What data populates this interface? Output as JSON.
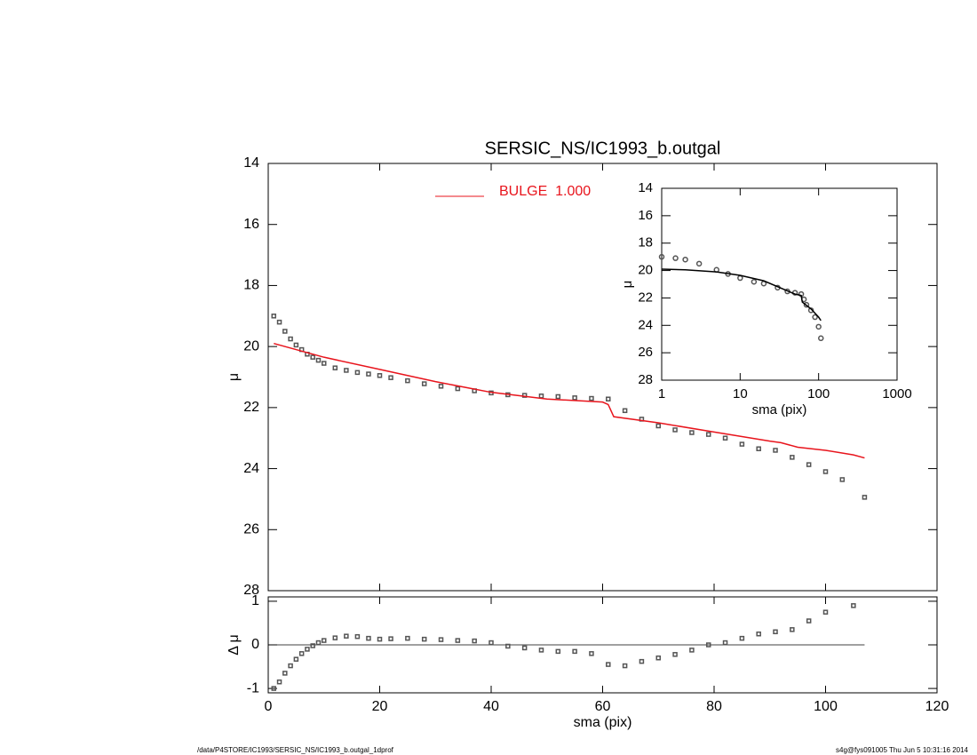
{
  "chart_data": [
    {
      "type": "scatter",
      "title": "SERSIC_NS/IC1993_b.outgal",
      "ylabel": "μ",
      "xlim": [
        0,
        120
      ],
      "xticks": [
        0,
        20,
        40,
        60,
        80,
        100,
        120
      ],
      "show_xtick_labels": false,
      "ylim": [
        28,
        14
      ],
      "yticks": [
        14,
        16,
        18,
        20,
        22,
        24,
        26,
        28
      ],
      "legend": "top",
      "series": [
        {
          "style": "markers",
          "color": "#555555",
          "x": [
            1,
            2,
            3,
            4,
            5,
            6,
            7,
            8,
            9,
            10,
            12,
            14,
            16,
            18,
            20,
            22,
            25,
            28,
            31,
            34,
            37,
            40,
            43,
            46,
            49,
            52,
            55,
            58,
            61,
            64,
            67,
            70,
            73,
            76,
            79,
            82,
            85,
            88,
            91,
            94,
            97,
            100,
            103,
            107
          ],
          "values": [
            19.0,
            19.2,
            19.5,
            19.75,
            19.95,
            20.1,
            20.25,
            20.35,
            20.45,
            20.55,
            20.7,
            20.78,
            20.85,
            20.9,
            20.95,
            21.02,
            21.12,
            21.22,
            21.3,
            21.38,
            21.45,
            21.52,
            21.58,
            21.6,
            21.62,
            21.64,
            21.68,
            21.7,
            21.72,
            22.1,
            22.38,
            22.6,
            22.73,
            22.82,
            22.88,
            23.0,
            23.2,
            23.35,
            23.4,
            23.63,
            23.87,
            24.1,
            24.36,
            24.94
          ]
        },
        {
          "style": "line",
          "name": "BULGE  1.000",
          "color": "#e8141c",
          "x": [
            1,
            10,
            20,
            30,
            40,
            50,
            60,
            61,
            62,
            70,
            80,
            90,
            92,
            95,
            100,
            105,
            107
          ],
          "values": [
            19.9,
            20.35,
            20.75,
            21.15,
            21.5,
            21.72,
            21.82,
            21.9,
            22.3,
            22.5,
            22.8,
            23.1,
            23.15,
            23.3,
            23.4,
            23.55,
            23.65
          ]
        }
      ]
    },
    {
      "type": "scatter",
      "xlabel": "sma (pix)",
      "ylabel": "Δ μ",
      "xlim": [
        0,
        120
      ],
      "xticks": [
        0,
        20,
        40,
        60,
        80,
        100,
        120
      ],
      "ylim": [
        -1.1,
        1.1
      ],
      "yticks": [
        -1,
        0,
        1
      ],
      "reference_line": {
        "y": 0,
        "x": [
          0,
          107
        ]
      },
      "series": [
        {
          "style": "markers",
          "color": "#555555",
          "x": [
            1,
            2,
            3,
            4,
            5,
            6,
            7,
            8,
            9,
            10,
            12,
            14,
            16,
            18,
            20,
            22,
            25,
            28,
            31,
            34,
            37,
            40,
            43,
            46,
            49,
            52,
            55,
            58,
            61,
            64,
            67,
            70,
            73,
            76,
            79,
            82,
            85,
            88,
            91,
            94,
            97,
            100,
            105
          ],
          "values": [
            -1.0,
            -0.85,
            -0.65,
            -0.48,
            -0.33,
            -0.2,
            -0.1,
            -0.02,
            0.05,
            0.1,
            0.16,
            0.2,
            0.19,
            0.15,
            0.13,
            0.14,
            0.15,
            0.13,
            0.12,
            0.1,
            0.09,
            0.05,
            -0.03,
            -0.07,
            -0.12,
            -0.15,
            -0.15,
            -0.2,
            -0.45,
            -0.48,
            -0.38,
            -0.3,
            -0.22,
            -0.12,
            0.0,
            0.05,
            0.15,
            0.25,
            0.3,
            0.35,
            0.55,
            0.75,
            0.9
          ]
        }
      ]
    },
    {
      "type": "scatter",
      "xlabel": "sma (pix)",
      "ylabel": "μ",
      "log_x": true,
      "xlim": [
        1,
        1000
      ],
      "xticks": [
        1,
        10,
        100,
        1000
      ],
      "ylim": [
        28,
        14
      ],
      "yticks": [
        14,
        16,
        18,
        20,
        22,
        24,
        26,
        28
      ],
      "series": [
        {
          "style": "circles",
          "color": "#555555",
          "x": [
            1,
            1.5,
            2,
            3,
            5,
            7,
            10,
            15,
            20,
            30,
            40,
            50,
            60,
            65,
            70,
            80,
            90,
            100,
            107
          ],
          "values": [
            19.0,
            19.1,
            19.2,
            19.5,
            19.95,
            20.25,
            20.55,
            20.82,
            20.95,
            21.25,
            21.52,
            21.62,
            21.72,
            22.1,
            22.5,
            22.9,
            23.4,
            24.1,
            24.94
          ]
        },
        {
          "style": "line",
          "color": "#000000",
          "x": [
            1,
            2,
            5,
            10,
            20,
            50,
            60,
            62,
            80,
            100,
            107
          ],
          "values": [
            19.9,
            19.95,
            20.1,
            20.35,
            20.75,
            21.72,
            21.82,
            22.3,
            22.8,
            23.4,
            23.65
          ]
        }
      ]
    }
  ],
  "footer": {
    "left": "/data/P4STORE/IC1993/SERSIC_NS/IC1993_b.outgal_1dprof",
    "right": "s4g@fys091005  Thu Jun  5 10:31:16 2014"
  }
}
